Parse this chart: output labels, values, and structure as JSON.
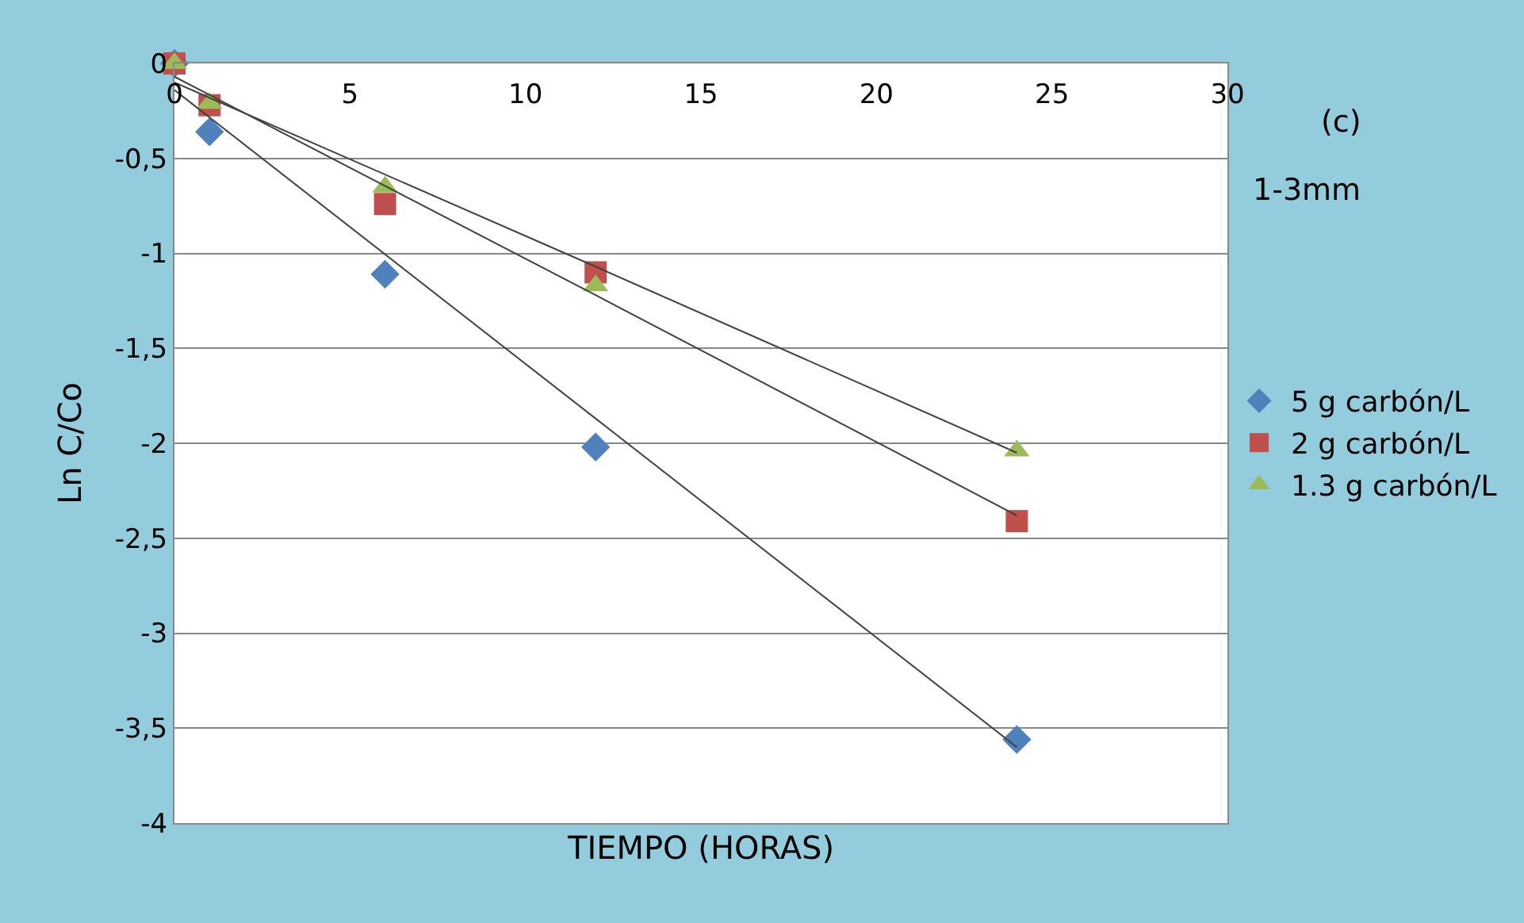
{
  "chart_data": {
    "type": "scatter",
    "xlabel": "TIEMPO (HORAS)",
    "ylabel": "Ln C/Co",
    "annotations": [
      "(c)",
      "1-3mm"
    ],
    "x": [
      0,
      1,
      6,
      12,
      24
    ],
    "series": [
      {
        "name": "5 g carbón/L",
        "color": "#4f81bd",
        "marker": "diamond",
        "values": [
          0,
          -0.36,
          -1.11,
          -2.02,
          -3.56
        ]
      },
      {
        "name": "2 g carbón/L",
        "color": "#c0504d",
        "marker": "square",
        "values": [
          0,
          -0.22,
          -0.74,
          -1.1,
          -2.41
        ]
      },
      {
        "name": "1.3 g carbón/L",
        "color": "#9bbb59",
        "marker": "triangle",
        "values": [
          0,
          -0.21,
          -0.65,
          -1.17,
          -2.04
        ]
      },
      {
        "type": "line",
        "color": "#404040",
        "x": [
          0,
          12,
          24
        ],
        "values": [
          -0.14,
          -1.87,
          -3.6
        ]
      },
      {
        "type": "line",
        "color": "#404040",
        "x": [
          0,
          12,
          24
        ],
        "values": [
          -0.07,
          -1.22,
          -2.38
        ]
      },
      {
        "type": "line",
        "color": "#404040",
        "x": [
          0,
          12,
          24
        ],
        "values": [
          -0.1,
          -1.07,
          -2.05
        ]
      }
    ],
    "xlim": [
      0,
      30
    ],
    "xticks": [
      0,
      5,
      10,
      15,
      20,
      25,
      30
    ],
    "ylim": [
      -4,
      0
    ],
    "yticks": [
      0,
      {
        "value": -0.5,
        "label": "-0,5"
      },
      -1,
      {
        "value": -1.5,
        "label": "-1,5"
      },
      -2,
      {
        "value": -2.5,
        "label": "-2,5"
      },
      -3,
      {
        "value": -3.5,
        "label": "-3,5"
      },
      -4
    ],
    "grid": "y",
    "legend": "right"
  }
}
